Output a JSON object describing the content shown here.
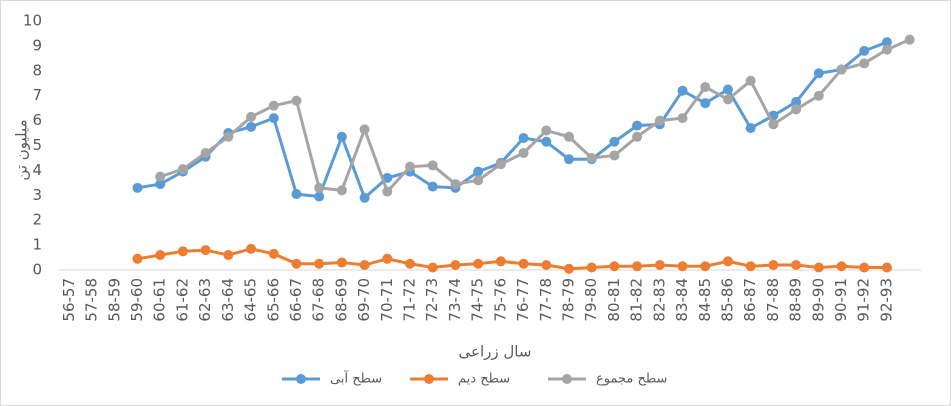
{
  "chart_data": {
    "type": "line",
    "x_label": "سال زراعی",
    "y_label": "میلیون تن",
    "categories": [
      "56-57",
      "57-58",
      "58-59",
      "59-60",
      "60-61",
      "61-62",
      "62-63",
      "63-64",
      "64-65",
      "65-66",
      "66-67",
      "67-68",
      "68-69",
      "69-70",
      "70-71",
      "71-72",
      "72-73",
      "73-74",
      "74-75",
      "75-76",
      "76-77",
      "77-78",
      "78-79",
      "79-80",
      "80-81",
      "81-82",
      "82-83",
      "83-84",
      "84-85",
      "85-86",
      "86-87",
      "87-88",
      "88-89",
      "89-90",
      "90-91",
      "91-92",
      "92-93",
      null
    ],
    "series": [
      {
        "name": "سطح آبی",
        "color": "#5b9bd5",
        "values": [
          null,
          null,
          null,
          3.3,
          3.45,
          3.95,
          4.55,
          5.5,
          5.75,
          6.1,
          3.05,
          2.95,
          5.35,
          2.9,
          3.7,
          3.95,
          3.35,
          3.3,
          3.95,
          4.3,
          5.3,
          5.15,
          4.45,
          4.45,
          5.15,
          5.8,
          5.85,
          7.2,
          6.7,
          7.25,
          5.7,
          6.2,
          6.75,
          7.9,
          8.05,
          8.8,
          9.15,
          null
        ]
      },
      {
        "name": "سطح دیم",
        "color": "#ed7d31",
        "values": [
          null,
          null,
          null,
          0.45,
          0.6,
          0.75,
          0.8,
          0.6,
          0.85,
          0.65,
          0.25,
          0.25,
          0.3,
          0.2,
          0.45,
          0.25,
          0.1,
          0.2,
          0.25,
          0.35,
          0.25,
          0.2,
          0.05,
          0.1,
          0.15,
          0.15,
          0.2,
          0.15,
          0.15,
          0.35,
          0.15,
          0.2,
          0.2,
          0.1,
          0.15,
          0.1,
          0.1,
          null
        ]
      },
      {
        "name": "سطح مجموع",
        "color": "#a5a5a5",
        "values": [
          null,
          null,
          null,
          null,
          3.75,
          4.05,
          4.7,
          5.35,
          6.15,
          6.6,
          6.8,
          3.3,
          3.2,
          5.65,
          3.15,
          4.15,
          4.2,
          3.45,
          3.6,
          4.25,
          4.7,
          5.6,
          5.35,
          4.5,
          4.6,
          5.35,
          6.0,
          6.1,
          7.35,
          6.85,
          7.6,
          5.85,
          6.45,
          7.0,
          8.05,
          8.3,
          8.85,
          9.25
        ]
      }
    ],
    "ylim": [
      0,
      10
    ],
    "yticks": [
      0,
      1,
      2,
      3,
      4,
      5,
      6,
      7,
      8,
      9,
      10
    ],
    "legend": "bottom"
  }
}
